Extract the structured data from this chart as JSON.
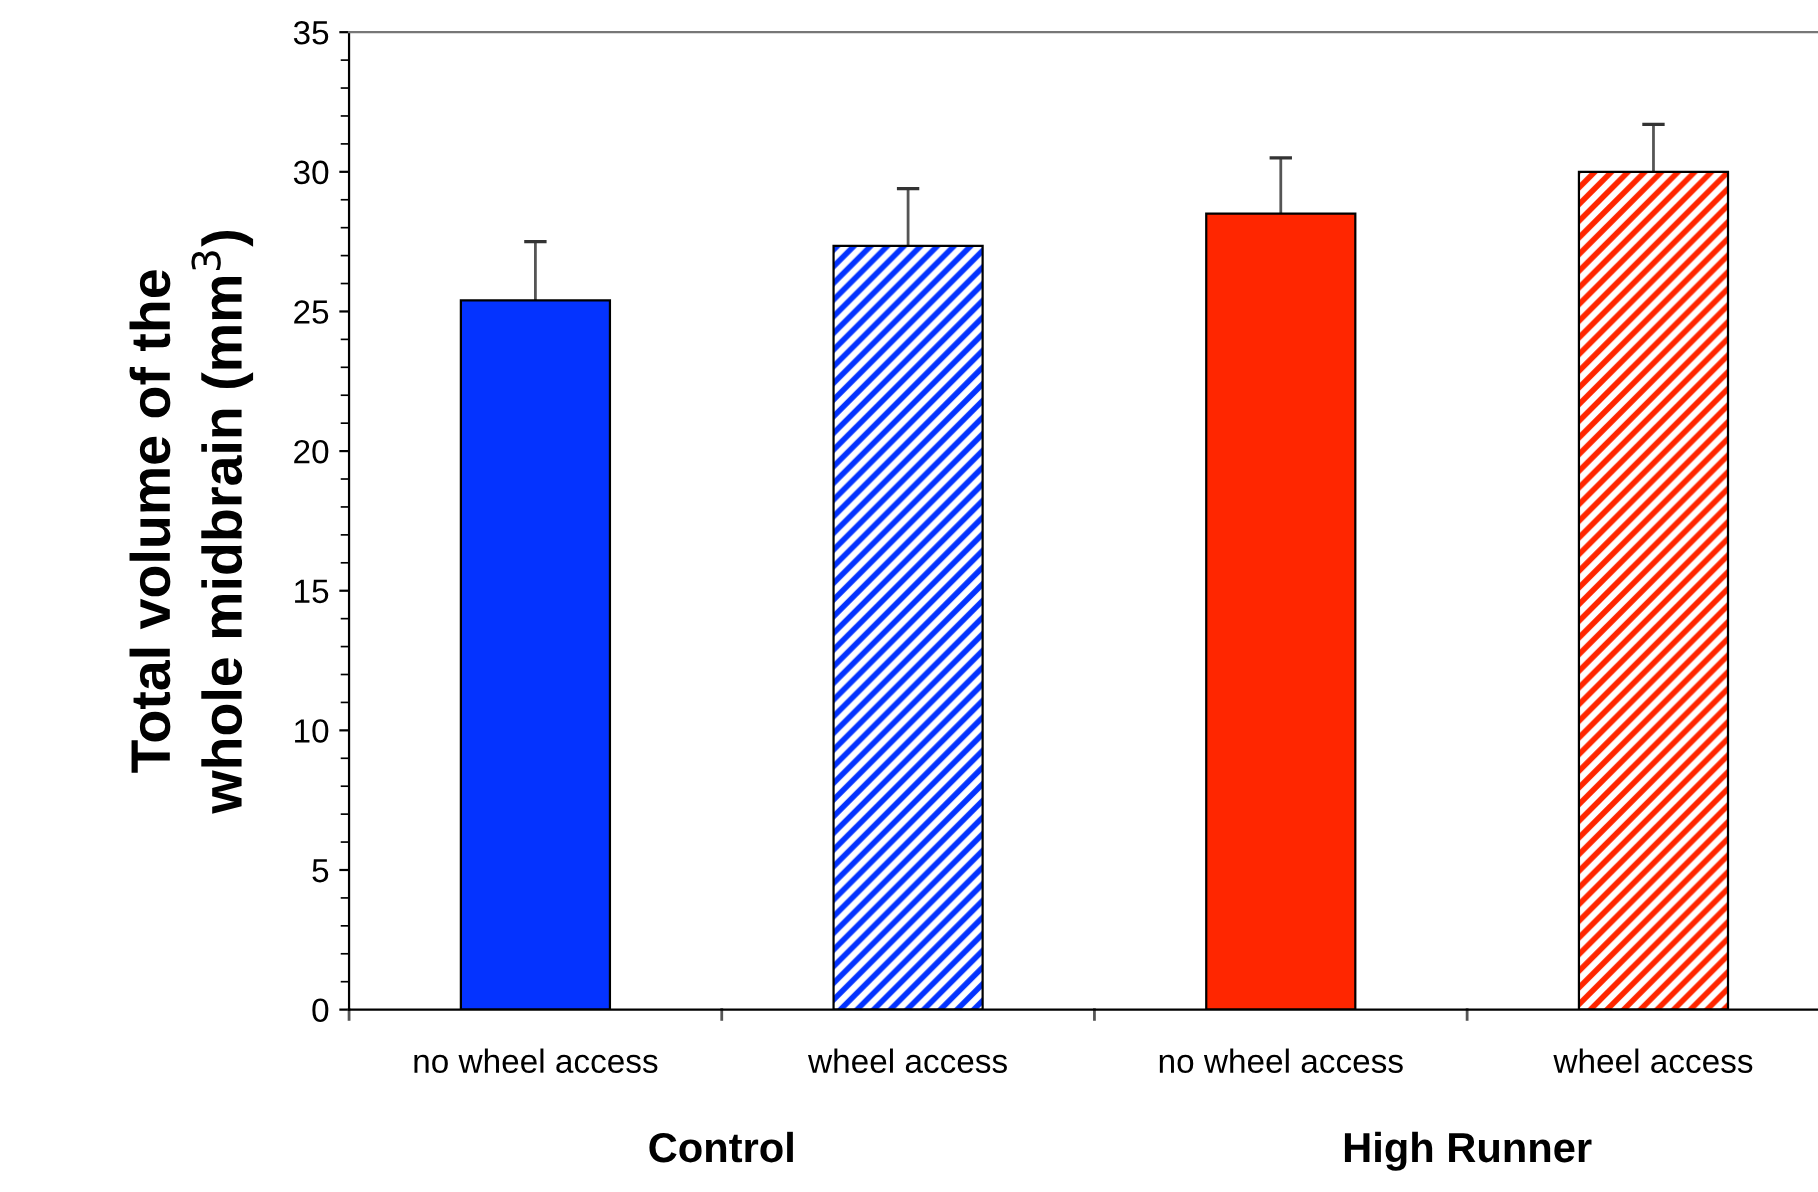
{
  "chart_data": {
    "type": "bar",
    "ylabel": "Total volume of the\nwhole midbrain (mm$^{3}$)",
    "categories": [
      "no wheel access",
      "wheel access",
      "no wheel access",
      "wheel access"
    ],
    "series": [
      {
        "colors": [
          "#0433ff",
          null,
          "#ff2600",
          null
        ],
        "values": [
          25.4,
          null,
          28.5,
          null
        ],
        "errors": [
          [
            25.4,
            27.5
          ],
          null,
          [
            28.5,
            30.5
          ],
          null
        ]
      },
      {
        "colors": [
          null,
          "#0433ff",
          null,
          "#ff2600"
        ],
        "values": [
          null,
          27.35,
          null,
          30.0
        ],
        "errors": [
          null,
          [
            27.35,
            29.4
          ],
          null,
          [
            30.0,
            31.7
          ]
        ]
      }
    ],
    "annotations": [
      "Control",
      "High Runner"
    ],
    "ylim": [
      0,
      35
    ],
    "yticks": [
      0,
      5,
      10,
      15,
      20,
      25,
      30,
      35
    ],
    "grid": false,
    "legend": false
  }
}
